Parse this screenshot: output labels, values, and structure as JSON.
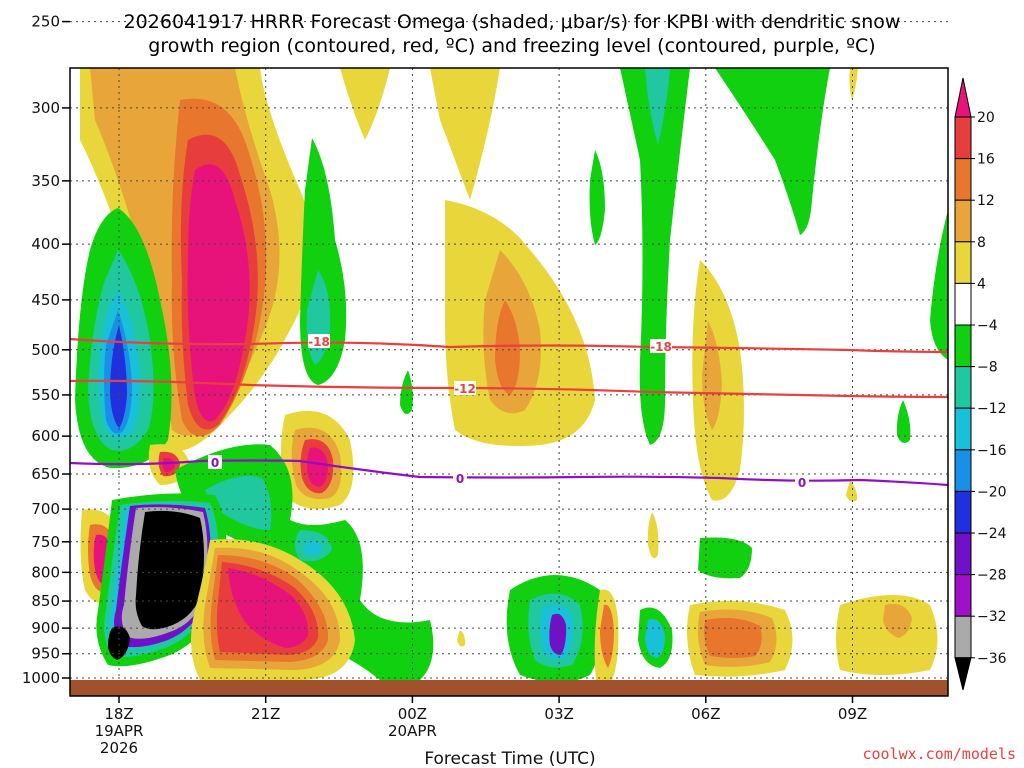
{
  "chart_data": {
    "type": "heatmap",
    "title_line1": "2026041917 HRRR Forecast Omega (shaded, μbar/s) for KPBI with dendritic snow",
    "title_line2": "growth region (contoured, red, ºC) and freezing level (contoured, purple, ºC)",
    "xlabel": "Forecast Time (UTC)",
    "credit": "coolwx.com/models",
    "y_ticks": [
      "250",
      "300",
      "350",
      "400",
      "450",
      "500",
      "550",
      "600",
      "650",
      "700",
      "750",
      "800",
      "850",
      "900",
      "950",
      "1000"
    ],
    "x_ticks": [
      {
        "label": "18Z",
        "sub1": "19APR",
        "sub2": "2026"
      },
      {
        "label": "21Z",
        "sub1": "",
        "sub2": ""
      },
      {
        "label": "00Z",
        "sub1": "20APR",
        "sub2": ""
      },
      {
        "label": "03Z",
        "sub1": "",
        "sub2": ""
      },
      {
        "label": "06Z",
        "sub1": "",
        "sub2": ""
      },
      {
        "label": "09Z",
        "sub1": "",
        "sub2": ""
      }
    ],
    "colorbar": {
      "labels": [
        "20",
        "16",
        "12",
        "8",
        "4",
        "−4",
        "−8",
        "−12",
        "−16",
        "−20",
        "−24",
        "−28",
        "−32",
        "−36"
      ],
      "colors": [
        "#e8137a",
        "#e83d3d",
        "#e8762d",
        "#e8a63a",
        "#e8d63a",
        "#ffffff",
        "#10d010",
        "#20c8a0",
        "#18c0d8",
        "#1890e8",
        "#2030e0",
        "#7010c8",
        "#a010c8",
        "#aaaaaa",
        "#000000"
      ]
    },
    "contours": {
      "red_labels": [
        "-18",
        "-18",
        "-12"
      ],
      "purple_labels": [
        "0",
        "0",
        "0"
      ],
      "red_color": "#e84040",
      "purple_color": "#9010c0"
    },
    "ground_color": "#a0522d"
  }
}
